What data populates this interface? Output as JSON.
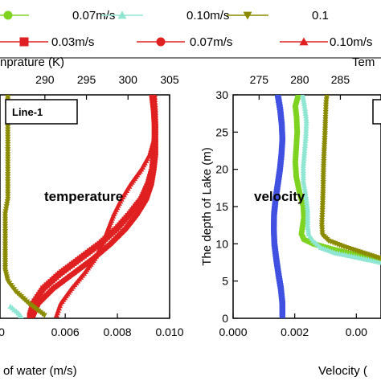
{
  "legend": {
    "row1": [
      {
        "label": "0.07m/s",
        "color": "#7ed321",
        "marker": "circle"
      },
      {
        "label": "0.10m/s",
        "color": "#8fe6d2",
        "marker": "triangle"
      },
      {
        "label": "0.1",
        "color": "#8b8b00",
        "marker": "triangle-down"
      }
    ],
    "row2": [
      {
        "label": "0.03m/s",
        "color": "#e02020",
        "marker": "square"
      },
      {
        "label": "0.07m/s",
        "color": "#e02020",
        "marker": "circle"
      },
      {
        "label": "0.10m/s",
        "color": "#e02020",
        "marker": "triangle"
      }
    ]
  },
  "panels": {
    "left": {
      "top_axis_label": "nprature (K)",
      "bottom_axis_label": "of water (m/s)",
      "top_ticks": [
        "290",
        "295",
        "300",
        "305"
      ],
      "bottom_ticks": [
        "0.006",
        "0.008",
        "0.010"
      ],
      "box_label": "Line-1",
      "annotation": "temperature"
    },
    "right": {
      "top_axis_label": "Tem",
      "bottom_axis_label": "Velocity (",
      "left_axis_label": "The depth of Lake (m)",
      "top_ticks": [
        "275",
        "280",
        "285"
      ],
      "bottom_ticks": [
        "0.000",
        "0.002",
        "0.00"
      ],
      "y_ticks": [
        "0",
        "5",
        "10",
        "15",
        "20",
        "25",
        "30"
      ],
      "annotation": "velocity",
      "partial_left_tick": "0"
    }
  },
  "chart_data": [
    {
      "type": "line",
      "panel": "left",
      "xlabel": "of water (m/s)",
      "x2label": "nprature (K)",
      "x_range": [
        0.0035,
        0.01
      ],
      "x2_range": [
        284.6,
        305
      ],
      "ylim": [
        0,
        30
      ],
      "series": [
        {
          "color": "#e02020",
          "marker": "square",
          "axis": "top",
          "points": [
            [
              288.2,
              0.4
            ],
            [
              288.6,
              2.0
            ],
            [
              289.8,
              4.0
            ],
            [
              291.8,
              6.0
            ],
            [
              294.2,
              8.0
            ],
            [
              296.6,
              10.0
            ],
            [
              298.6,
              12.0
            ],
            [
              300.2,
              14.0
            ],
            [
              301.6,
              16.0
            ],
            [
              302.4,
              18.0
            ],
            [
              302.9,
              20.0
            ],
            [
              303.1,
              22.0
            ],
            [
              303.2,
              24.0
            ],
            [
              303.2,
              26.0
            ],
            [
              303.1,
              28.0
            ],
            [
              302.9,
              30.0
            ]
          ]
        },
        {
          "color": "#e02020",
          "marker": "circle",
          "axis": "top",
          "points": [
            [
              288.6,
              0.4
            ],
            [
              289.2,
              2.0
            ],
            [
              291.0,
              4.0
            ],
            [
              293.4,
              6.0
            ],
            [
              295.8,
              8.0
            ],
            [
              297.9,
              10.0
            ],
            [
              299.7,
              12.0
            ],
            [
              301.1,
              14.0
            ],
            [
              302.2,
              16.0
            ],
            [
              302.8,
              18.0
            ],
            [
              303.1,
              20.0
            ],
            [
              303.3,
              22.0
            ],
            [
              303.3,
              24.0
            ],
            [
              303.3,
              26.0
            ],
            [
              303.2,
              28.0
            ],
            [
              303.0,
              30.0
            ]
          ]
        },
        {
          "color": "#e02020",
          "marker": "triangle",
          "axis": "top",
          "points": [
            [
              291.4,
              0.4
            ],
            [
              291.9,
              2.0
            ],
            [
              293.2,
              4.0
            ],
            [
              294.7,
              6.0
            ],
            [
              296.0,
              8.0
            ],
            [
              296.9,
              10.0
            ],
            [
              297.6,
              12.0
            ],
            [
              298.3,
              14.0
            ],
            [
              299.2,
              16.0
            ],
            [
              300.3,
              18.0
            ],
            [
              301.6,
              20.0
            ],
            [
              302.6,
              22.0
            ],
            [
              303.1,
              24.0
            ],
            [
              303.3,
              26.0
            ],
            [
              303.3,
              28.0
            ],
            [
              303.2,
              30.0
            ]
          ]
        },
        {
          "color": "#8b8b00",
          "marker": "triangle-down",
          "axis": "bottom",
          "points": [
            [
              0.0052,
              0.4
            ],
            [
              0.0046,
              2.0
            ],
            [
              0.0041,
              3.6
            ],
            [
              0.0038,
              5.0
            ],
            [
              0.0037,
              6.5
            ],
            [
              0.0037,
              9.0
            ],
            [
              0.0037,
              12.0
            ],
            [
              0.0037,
              14.0
            ],
            [
              0.0038,
              16.0
            ],
            [
              0.0038,
              19.0
            ],
            [
              0.0038,
              22.0
            ],
            [
              0.0038,
              25.0
            ],
            [
              0.0038,
              28.0
            ],
            [
              0.0038,
              30.0
            ]
          ]
        },
        {
          "color": "#8fe6d2",
          "marker": "triangle",
          "axis": "bottom",
          "points": [
            [
              0.0039,
              1.6
            ],
            [
              0.0042,
              0.7
            ],
            [
              0.0043,
              0.3
            ]
          ]
        }
      ]
    },
    {
      "type": "line",
      "panel": "right",
      "ylabel": "The depth of Lake (m)",
      "xlabel": "Velocity (",
      "x2label": "Tem",
      "x_range": [
        0.0,
        0.0048
      ],
      "x2_range": [
        271.8,
        290
      ],
      "ylim": [
        0,
        30
      ],
      "series": [
        {
          "color": "#4050e0",
          "marker": "square",
          "axis": "bottom",
          "points": [
            [
              0.0016,
              0.4
            ],
            [
              0.0016,
              2.0
            ],
            [
              0.00155,
              4.0
            ],
            [
              0.00147,
              6.0
            ],
            [
              0.0014,
              8.0
            ],
            [
              0.00134,
              10.0
            ],
            [
              0.00132,
              12.0
            ],
            [
              0.00133,
              14.0
            ],
            [
              0.00138,
              16.0
            ],
            [
              0.00145,
              18.0
            ],
            [
              0.00152,
              20.0
            ],
            [
              0.00157,
              22.0
            ],
            [
              0.0016,
              24.0
            ],
            [
              0.00158,
              26.0
            ],
            [
              0.00153,
              28.0
            ],
            [
              0.00145,
              30.0
            ]
          ]
        },
        {
          "color": "#7ed321",
          "marker": "circle",
          "axis": "bottom",
          "points": [
            [
              0.0048,
              7.8
            ],
            [
              0.004,
              8.5
            ],
            [
              0.0032,
              9.3
            ],
            [
              0.0026,
              10.0
            ],
            [
              0.0023,
              10.6
            ],
            [
              0.00222,
              11.3
            ],
            [
              0.00224,
              12.0
            ],
            [
              0.0023,
              13.5
            ],
            [
              0.00228,
              15.0
            ],
            [
              0.00215,
              17.0
            ],
            [
              0.00205,
              19.0
            ],
            [
              0.00202,
              21.0
            ],
            [
              0.00205,
              23.0
            ],
            [
              0.00208,
              25.0
            ],
            [
              0.00206,
              27.0
            ],
            [
              0.00202,
              28.5
            ],
            [
              0.00212,
              30.0
            ]
          ]
        },
        {
          "color": "#8fe6d2",
          "marker": "triangle",
          "axis": "bottom",
          "points": [
            [
              0.0048,
              7.5
            ],
            [
              0.004,
              8.2
            ],
            [
              0.0033,
              8.8
            ],
            [
              0.00285,
              9.5
            ],
            [
              0.0026,
              10.4
            ],
            [
              0.00245,
              11.3
            ],
            [
              0.00242,
              12.5
            ],
            [
              0.00242,
              14.5
            ],
            [
              0.00236,
              16.5
            ],
            [
              0.00228,
              18.5
            ],
            [
              0.00228,
              20.5
            ],
            [
              0.00232,
              22.5
            ],
            [
              0.00236,
              24.5
            ],
            [
              0.00238,
              26.5
            ],
            [
              0.00232,
              28.5
            ],
            [
              0.00226,
              30.0
            ]
          ]
        },
        {
          "color": "#8b8b00",
          "marker": "triangle-down",
          "axis": "bottom",
          "points": [
            [
              0.0048,
              8.0
            ],
            [
              0.0042,
              8.8
            ],
            [
              0.0036,
              9.6
            ],
            [
              0.0031,
              10.4
            ],
            [
              0.0029,
              11.2
            ],
            [
              0.00288,
              12.5
            ],
            [
              0.0029,
              14.5
            ],
            [
              0.00292,
              17.0
            ],
            [
              0.00293,
              19.5
            ],
            [
              0.00295,
              22.0
            ],
            [
              0.00298,
              24.5
            ],
            [
              0.003,
              27.0
            ],
            [
              0.00302,
              29.0
            ],
            [
              0.00305,
              30.0
            ]
          ]
        }
      ]
    }
  ]
}
